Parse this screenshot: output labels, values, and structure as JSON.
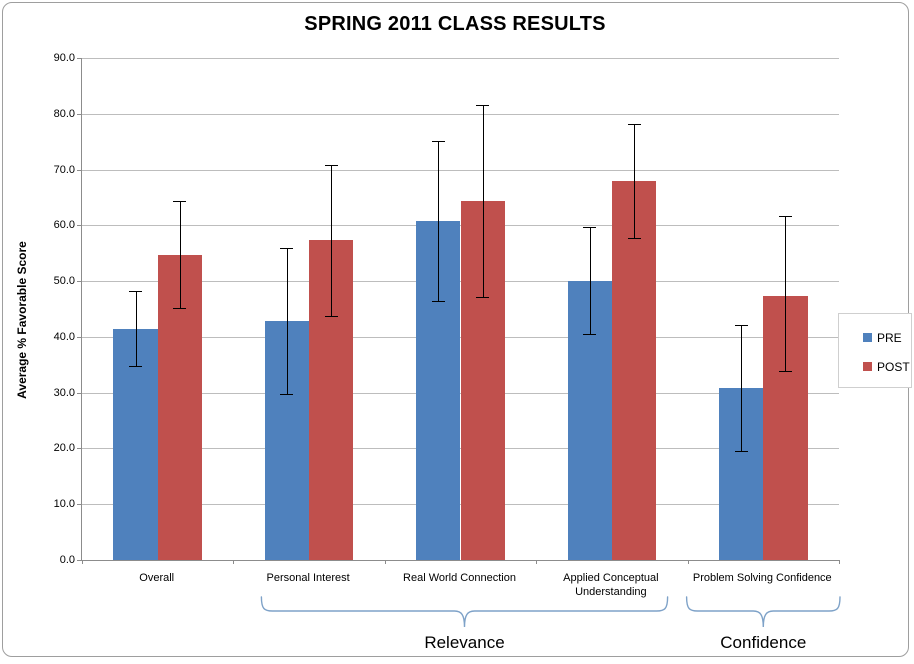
{
  "title": "SPRING 2011 CLASS RESULTS",
  "y_axis": {
    "title": "Average % Favorable Score",
    "tick_labels": [
      "0.0",
      "10.0",
      "20.0",
      "30.0",
      "40.0",
      "50.0",
      "60.0",
      "70.0",
      "80.0",
      "90.0"
    ]
  },
  "legend": {
    "entries": [
      {
        "label": "PRE",
        "color": "#4F81BD"
      },
      {
        "label": "POST",
        "color": "#C0504D"
      }
    ]
  },
  "colors": {
    "gridline": "#bdbdbd",
    "axis": "#8c8c8c",
    "error_bar": "#000000",
    "brace": "#7ea2c8",
    "pre": "#4F81BD",
    "post": "#C0504D"
  },
  "chart_data": {
    "type": "bar",
    "title": "SPRING 2011 CLASS RESULTS",
    "ylabel": "Average % Favorable Score",
    "xlabel": "",
    "ylim": [
      0,
      90
    ],
    "ytick_step": 10,
    "grid": true,
    "legend_position": "right",
    "categories": [
      "Overall",
      "Personal Interest",
      "Real World Connection",
      "Applied Conceptual Understanding",
      "Problem Solving Confidence"
    ],
    "series": [
      {
        "name": "PRE",
        "color": "#4F81BD",
        "values": [
          41.5,
          42.9,
          60.8,
          50.0,
          30.9
        ],
        "err_low": [
          34.8,
          29.7,
          46.5,
          40.6,
          19.6
        ],
        "err_high": [
          48.3,
          55.9,
          75.2,
          59.7,
          42.2
        ]
      },
      {
        "name": "POST",
        "color": "#C0504D",
        "values": [
          54.7,
          57.3,
          64.4,
          68.0,
          47.4
        ],
        "err_low": [
          45.2,
          43.7,
          47.2,
          57.8,
          33.8
        ],
        "err_high": [
          64.3,
          70.9,
          81.6,
          78.2,
          61.6
        ]
      }
    ],
    "groups": [
      {
        "label": "Relevance",
        "span": [
          1,
          3
        ]
      },
      {
        "label": "Confidence",
        "span": [
          4,
          4
        ]
      }
    ]
  }
}
